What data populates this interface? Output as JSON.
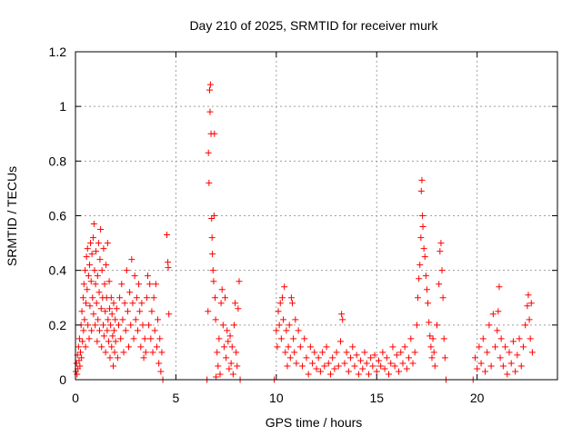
{
  "chart_data": {
    "type": "scatter",
    "title": "Day 210 of 2025, SRMTID for receiver murk",
    "xlabel": "GPS time / hours",
    "ylabel": "SRMTID / TECUs",
    "xlim": [
      0,
      24
    ],
    "ylim": [
      0,
      1.2
    ],
    "xticks": [
      0,
      5,
      10,
      15,
      20
    ],
    "xtick_labels": [
      "0",
      "5",
      "10",
      "15",
      "20"
    ],
    "yticks": [
      0,
      0.2,
      0.4,
      0.6,
      0.8,
      1.0,
      1.2
    ],
    "ytick_labels": [
      "0",
      "0.2",
      "0.4",
      "0.6",
      "0.8",
      "1",
      "1.2"
    ],
    "grid": true,
    "marker": "+",
    "color": "#ff0000",
    "series": [
      {
        "name": "SRMTID",
        "points": [
          [
            0.02,
            0.03
          ],
          [
            0.05,
            0.06
          ],
          [
            0.08,
            0.02
          ],
          [
            0.1,
            0.09
          ],
          [
            0.12,
            0.04
          ],
          [
            0.15,
            0.12
          ],
          [
            0.18,
            0.07
          ],
          [
            0.2,
            0.15
          ],
          [
            0.22,
            0.05
          ],
          [
            0.25,
            0.1
          ],
          [
            0.28,
            0.2
          ],
          [
            0.3,
            0.08
          ],
          [
            0.32,
            0.25
          ],
          [
            0.35,
            0.14
          ],
          [
            0.38,
            0.3
          ],
          [
            0.4,
            0.18
          ],
          [
            0.42,
            0.35
          ],
          [
            0.45,
            0.22
          ],
          [
            0.48,
            0.4
          ],
          [
            0.5,
            0.12
          ],
          [
            0.52,
            0.28
          ],
          [
            0.55,
            0.45
          ],
          [
            0.58,
            0.33
          ],
          [
            0.6,
            0.48
          ],
          [
            0.62,
            0.2
          ],
          [
            0.65,
            0.38
          ],
          [
            0.68,
            0.15
          ],
          [
            0.7,
            0.42
          ],
          [
            0.72,
            0.27
          ],
          [
            0.75,
            0.5
          ],
          [
            0.78,
            0.36
          ],
          [
            0.8,
            0.18
          ],
          [
            0.82,
            0.46
          ],
          [
            0.85,
            0.3
          ],
          [
            0.88,
            0.52
          ],
          [
            0.9,
            0.24
          ],
          [
            0.92,
            0.57
          ],
          [
            0.95,
            0.4
          ],
          [
            0.98,
            0.2
          ],
          [
            1.0,
            0.35
          ],
          [
            1.02,
            0.47
          ],
          [
            1.05,
            0.28
          ],
          [
            1.08,
            0.14
          ],
          [
            1.1,
            0.38
          ],
          [
            1.12,
            0.22
          ],
          [
            1.15,
            0.5
          ],
          [
            1.18,
            0.32
          ],
          [
            1.2,
            0.18
          ],
          [
            1.22,
            0.44
          ],
          [
            1.25,
            0.55
          ],
          [
            1.28,
            0.26
          ],
          [
            1.3,
            0.12
          ],
          [
            1.32,
            0.4
          ],
          [
            1.35,
            0.3
          ],
          [
            1.38,
            0.2
          ],
          [
            1.4,
            0.48
          ],
          [
            1.42,
            0.16
          ],
          [
            1.45,
            0.35
          ],
          [
            1.48,
            0.25
          ],
          [
            1.5,
            0.1
          ],
          [
            1.52,
            0.42
          ],
          [
            1.55,
            0.3
          ],
          [
            1.58,
            0.18
          ],
          [
            1.6,
            0.5
          ],
          [
            1.62,
            0.22
          ],
          [
            1.65,
            0.14
          ],
          [
            1.68,
            0.36
          ],
          [
            1.7,
            0.26
          ],
          [
            1.72,
            0.08
          ],
          [
            1.75,
            0.2
          ],
          [
            1.78,
            0.3
          ],
          [
            1.8,
            0.12
          ],
          [
            1.82,
            0.24
          ],
          [
            1.85,
            0.16
          ],
          [
            1.88,
            0.05
          ],
          [
            1.9,
            0.28
          ],
          [
            1.92,
            0.18
          ],
          [
            1.95,
            0.1
          ],
          [
            1.98,
            0.22
          ],
          [
            2.0,
            0.14
          ],
          [
            2.05,
            0.26
          ],
          [
            2.1,
            0.08
          ],
          [
            2.15,
            0.2
          ],
          [
            2.2,
            0.3
          ],
          [
            2.25,
            0.15
          ],
          [
            2.3,
            0.35
          ],
          [
            2.35,
            0.22
          ],
          [
            2.4,
            0.1
          ],
          [
            2.45,
            0.28
          ],
          [
            2.5,
            0.18
          ],
          [
            2.55,
            0.4
          ],
          [
            2.6,
            0.25
          ],
          [
            2.65,
            0.12
          ],
          [
            2.7,
            0.32
          ],
          [
            2.75,
            0.2
          ],
          [
            2.8,
            0.44
          ],
          [
            2.85,
            0.28
          ],
          [
            2.9,
            0.15
          ],
          [
            2.95,
            0.38
          ],
          [
            3.0,
            0.22
          ],
          [
            3.05,
            0.3
          ],
          [
            3.1,
            0.18
          ],
          [
            3.15,
            0.35
          ],
          [
            3.2,
            0.25
          ],
          [
            3.25,
            0.12
          ],
          [
            3.3,
            0.28
          ],
          [
            3.35,
            0.2
          ],
          [
            3.4,
            0.08
          ],
          [
            3.45,
            0.15
          ],
          [
            3.5,
            0.1
          ],
          [
            3.55,
            0.3
          ],
          [
            3.6,
            0.38
          ],
          [
            3.65,
            0.2
          ],
          [
            3.7,
            0.35
          ],
          [
            3.75,
            0.15
          ],
          [
            3.8,
            0.25
          ],
          [
            3.85,
            0.1
          ],
          [
            3.9,
            0.3
          ],
          [
            3.95,
            0.18
          ],
          [
            4.0,
            0.35
          ],
          [
            4.05,
            0.12
          ],
          [
            4.1,
            0.22
          ],
          [
            4.15,
            0.06
          ],
          [
            4.2,
            0.15
          ],
          [
            4.25,
            0.03
          ],
          [
            4.3,
            0.1
          ],
          [
            4.35,
            0.0
          ],
          [
            4.55,
            0.53
          ],
          [
            4.6,
            0.43
          ],
          [
            4.62,
            0.41
          ],
          [
            4.65,
            0.24
          ],
          [
            6.55,
            0.0
          ],
          [
            6.6,
            0.25
          ],
          [
            6.62,
            0.83
          ],
          [
            6.65,
            0.72
          ],
          [
            6.68,
            1.06
          ],
          [
            6.7,
            0.98
          ],
          [
            6.72,
            1.08
          ],
          [
            6.75,
            0.9
          ],
          [
            6.78,
            0.59
          ],
          [
            6.8,
            0.52
          ],
          [
            6.82,
            0.46
          ],
          [
            6.85,
            0.4
          ],
          [
            6.88,
            0.36
          ],
          [
            6.9,
            0.6
          ],
          [
            6.92,
            0.9
          ],
          [
            6.95,
            0.3
          ],
          [
            6.98,
            0.22
          ],
          [
            7.0,
            0.01
          ],
          [
            7.05,
            0.1
          ],
          [
            7.1,
            0.05
          ],
          [
            7.15,
            0.15
          ],
          [
            7.2,
            0.02
          ],
          [
            7.25,
            0.28
          ],
          [
            7.3,
            0.33
          ],
          [
            7.35,
            0.2
          ],
          [
            7.4,
            0.12
          ],
          [
            7.45,
            0.3
          ],
          [
            7.5,
            0.08
          ],
          [
            7.55,
            0.18
          ],
          [
            7.6,
            0.14
          ],
          [
            7.65,
            0.04
          ],
          [
            7.7,
            0.16
          ],
          [
            7.75,
            0.06
          ],
          [
            7.8,
            0.12
          ],
          [
            7.85,
            0.02
          ],
          [
            7.9,
            0.2
          ],
          [
            7.95,
            0.28
          ],
          [
            8.0,
            0.1
          ],
          [
            8.05,
            0.05
          ],
          [
            8.1,
            0.26
          ],
          [
            8.15,
            0.36
          ],
          [
            8.2,
            0.0
          ],
          [
            9.9,
            0.0
          ],
          [
            10.0,
            0.18
          ],
          [
            10.05,
            0.12
          ],
          [
            10.1,
            0.25
          ],
          [
            10.15,
            0.2
          ],
          [
            10.2,
            0.28
          ],
          [
            10.25,
            0.15
          ],
          [
            10.3,
            0.3
          ],
          [
            10.35,
            0.22
          ],
          [
            10.4,
            0.34
          ],
          [
            10.45,
            0.1
          ],
          [
            10.5,
            0.18
          ],
          [
            10.55,
            0.05
          ],
          [
            10.6,
            0.12
          ],
          [
            10.65,
            0.2
          ],
          [
            10.7,
            0.08
          ],
          [
            10.75,
            0.3
          ],
          [
            10.8,
            0.28
          ],
          [
            10.85,
            0.15
          ],
          [
            10.9,
            0.1
          ],
          [
            10.95,
            0.22
          ],
          [
            11.0,
            0.06
          ],
          [
            11.1,
            0.18
          ],
          [
            11.2,
            0.12
          ],
          [
            11.3,
            0.05
          ],
          [
            11.4,
            0.15
          ],
          [
            11.5,
            0.08
          ],
          [
            11.6,
            0.02
          ],
          [
            11.7,
            0.12
          ],
          [
            11.8,
            0.06
          ],
          [
            11.9,
            0.1
          ],
          [
            12.0,
            0.04
          ],
          [
            12.1,
            0.08
          ],
          [
            12.2,
            0.03
          ],
          [
            12.3,
            0.1
          ],
          [
            12.4,
            0.05
          ],
          [
            12.5,
            0.12
          ],
          [
            12.6,
            0.06
          ],
          [
            12.7,
            0.02
          ],
          [
            12.8,
            0.08
          ],
          [
            12.9,
            0.04
          ],
          [
            13.0,
            0.1
          ],
          [
            13.1,
            0.05
          ],
          [
            13.2,
            0.14
          ],
          [
            13.25,
            0.24
          ],
          [
            13.3,
            0.22
          ],
          [
            13.4,
            0.06
          ],
          [
            13.5,
            0.1
          ],
          [
            13.6,
            0.03
          ],
          [
            13.7,
            0.08
          ],
          [
            13.8,
            0.12
          ],
          [
            13.9,
            0.05
          ],
          [
            14.0,
            0.09
          ],
          [
            14.1,
            0.02
          ],
          [
            14.2,
            0.07
          ],
          [
            14.3,
            0.04
          ],
          [
            14.4,
            0.1
          ],
          [
            14.5,
            0.06
          ],
          [
            14.6,
            0.02
          ],
          [
            14.7,
            0.08
          ],
          [
            14.8,
            0.05
          ],
          [
            14.9,
            0.09
          ],
          [
            15.0,
            0.03
          ],
          [
            15.1,
            0.07
          ],
          [
            15.2,
            0.05
          ],
          [
            15.3,
            0.1
          ],
          [
            15.4,
            0.04
          ],
          [
            15.5,
            0.08
          ],
          [
            15.6,
            0.02
          ],
          [
            15.7,
            0.06
          ],
          [
            15.8,
            0.12
          ],
          [
            15.9,
            0.05
          ],
          [
            16.0,
            0.09
          ],
          [
            16.1,
            0.03
          ],
          [
            16.2,
            0.1
          ],
          [
            16.3,
            0.06
          ],
          [
            16.4,
            0.12
          ],
          [
            16.5,
            0.04
          ],
          [
            16.6,
            0.08
          ],
          [
            16.7,
            0.15
          ],
          [
            16.8,
            0.06
          ],
          [
            16.9,
            0.1
          ],
          [
            17.0,
            0.2
          ],
          [
            17.05,
            0.3
          ],
          [
            17.1,
            0.37
          ],
          [
            17.15,
            0.42
          ],
          [
            17.2,
            0.52
          ],
          [
            17.22,
            0.69
          ],
          [
            17.25,
            0.73
          ],
          [
            17.28,
            0.6
          ],
          [
            17.3,
            0.56
          ],
          [
            17.35,
            0.48
          ],
          [
            17.4,
            0.45
          ],
          [
            17.45,
            0.38
          ],
          [
            17.5,
            0.33
          ],
          [
            17.55,
            0.28
          ],
          [
            17.6,
            0.21
          ],
          [
            17.65,
            0.16
          ],
          [
            17.7,
            0.12
          ],
          [
            17.75,
            0.08
          ],
          [
            17.8,
            0.15
          ],
          [
            17.85,
            0.1
          ],
          [
            17.9,
            0.05
          ],
          [
            18.0,
            0.2
          ],
          [
            18.1,
            0.35
          ],
          [
            18.15,
            0.47
          ],
          [
            18.2,
            0.5
          ],
          [
            18.25,
            0.4
          ],
          [
            18.3,
            0.3
          ],
          [
            18.35,
            0.15
          ],
          [
            18.4,
            0.08
          ],
          [
            18.45,
            0.0
          ],
          [
            19.8,
            0.0
          ],
          [
            19.9,
            0.08
          ],
          [
            20.0,
            0.04
          ],
          [
            20.1,
            0.12
          ],
          [
            20.2,
            0.06
          ],
          [
            20.3,
            0.15
          ],
          [
            20.4,
            0.03
          ],
          [
            20.5,
            0.1
          ],
          [
            20.6,
            0.2
          ],
          [
            20.7,
            0.05
          ],
          [
            20.8,
            0.24
          ],
          [
            20.9,
            0.12
          ],
          [
            21.0,
            0.18
          ],
          [
            21.05,
            0.25
          ],
          [
            21.1,
            0.34
          ],
          [
            21.15,
            0.08
          ],
          [
            21.2,
            0.15
          ],
          [
            21.3,
            0.05
          ],
          [
            21.4,
            0.12
          ],
          [
            21.5,
            0.02
          ],
          [
            21.6,
            0.1
          ],
          [
            21.7,
            0.06
          ],
          [
            21.8,
            0.14
          ],
          [
            21.9,
            0.03
          ],
          [
            22.0,
            0.09
          ],
          [
            22.1,
            0.15
          ],
          [
            22.2,
            0.05
          ],
          [
            22.3,
            0.12
          ],
          [
            22.4,
            0.2
          ],
          [
            22.5,
            0.27
          ],
          [
            22.55,
            0.31
          ],
          [
            22.6,
            0.22
          ],
          [
            22.65,
            0.15
          ],
          [
            22.7,
            0.28
          ],
          [
            22.75,
            0.1
          ]
        ]
      }
    ]
  }
}
